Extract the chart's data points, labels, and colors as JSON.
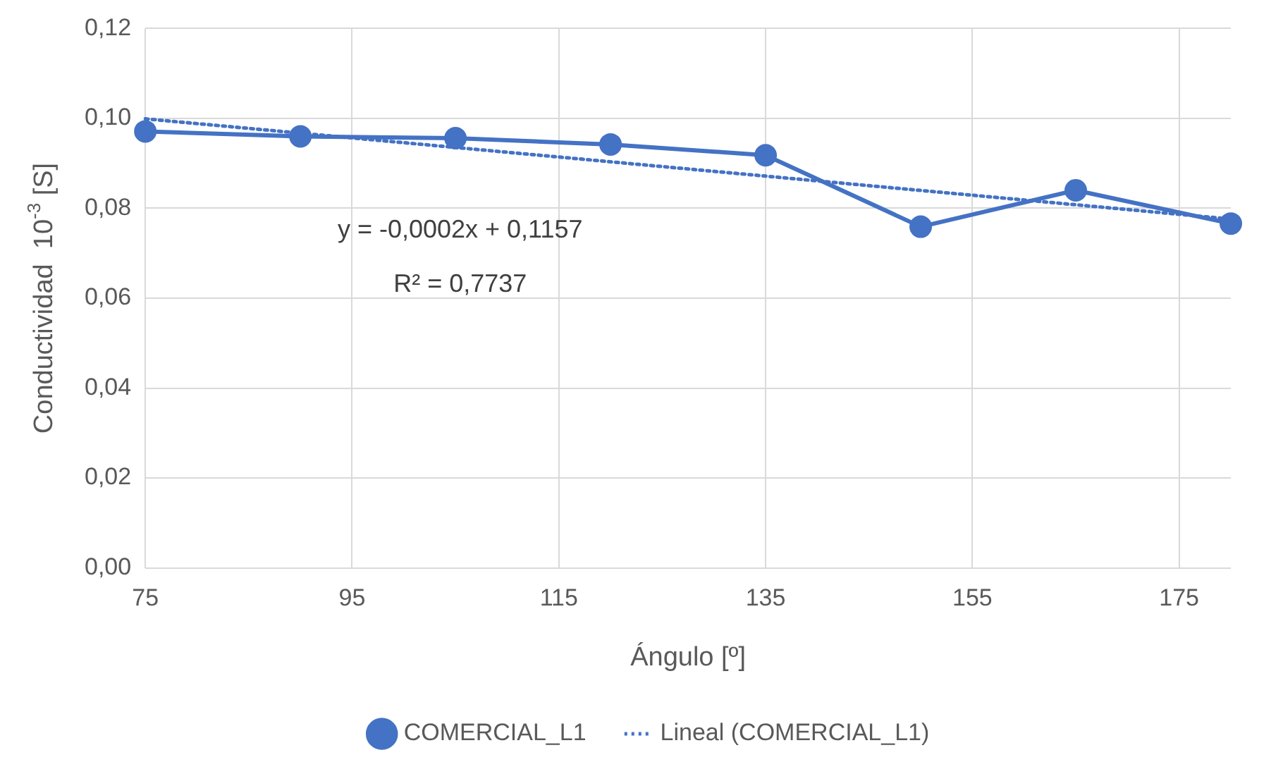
{
  "chart_data": {
    "type": "line",
    "xlabel": "Ángulo [º]",
    "ylabel": "Conductividad  10$^{-3}$ [S]",
    "x": [
      75,
      90,
      105,
      120,
      135,
      150,
      165,
      180
    ],
    "series": [
      {
        "name": "COMERCIAL_L1",
        "color": "#4472c4",
        "values": [
          0.0971,
          0.096,
          0.0956,
          0.0942,
          0.0918,
          0.0759,
          0.084,
          0.0766
        ],
        "marker": "circle",
        "line_style": "solid"
      },
      {
        "name": "Lineal (COMERCIAL_L1)",
        "type": "line",
        "color": "#4472c4",
        "x": [
          75,
          180
        ],
        "values": [
          0.0999,
          0.0776
        ],
        "marker": "none",
        "line_style": "dotted"
      }
    ],
    "xlim": [
      75,
      180
    ],
    "xticks": [
      75,
      95,
      115,
      135,
      155,
      175
    ],
    "ylim": [
      0,
      0.12
    ],
    "yticks": [
      {
        "value": 0,
        "label": "0,00"
      },
      {
        "value": 0.02,
        "label": "0,02"
      },
      {
        "value": 0.04,
        "label": "0,04"
      },
      {
        "value": 0.06,
        "label": "0,06"
      },
      {
        "value": 0.08,
        "label": "0,08"
      },
      {
        "value": 0.1,
        "label": "0,10"
      },
      {
        "value": 0.12,
        "label": "0,12"
      }
    ],
    "grid": true,
    "legend": "bottom",
    "annotations": [
      "y = -0,0002x + 0,1157",
      "R² = 0,7737"
    ]
  }
}
